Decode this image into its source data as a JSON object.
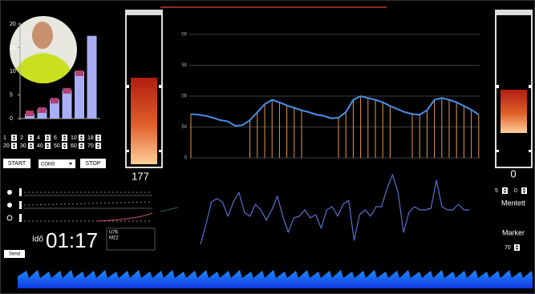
{
  "bar_chart": {
    "ylim": [
      0,
      20
    ],
    "yticks": [
      0,
      5,
      10,
      15,
      20
    ],
    "values": [
      1,
      2,
      4,
      6,
      10,
      17.5
    ],
    "markers": [
      1,
      1.7,
      3.7,
      5.8,
      9.5
    ]
  },
  "spinners_row1": [
    "1",
    "2",
    "4",
    "6",
    "10",
    "18"
  ],
  "spinners_row2": [
    "20",
    "30",
    "40",
    "50",
    "60",
    "70"
  ],
  "buttons": {
    "start": "START",
    "port": "COM3",
    "stop": "STOP",
    "send": "Send"
  },
  "left_gauge": {
    "value": 177
  },
  "right_gauge": {
    "value": 0
  },
  "main_chart": {
    "ylim": [
      0,
      200
    ],
    "yticks": [
      0,
      50,
      {
        "value": 100,
        "label": "00"
      },
      {
        "value": 150,
        "label": "50"
      },
      {
        "value": 200,
        "label": "00"
      }
    ],
    "line": [
      71,
      70,
      68,
      65,
      61,
      59,
      52,
      53,
      61,
      74,
      87,
      94,
      90,
      85,
      81,
      77,
      74,
      70,
      68,
      64,
      65,
      74,
      94,
      100,
      97,
      94,
      90,
      84,
      79,
      74,
      71,
      70,
      77,
      94,
      97,
      94,
      90,
      84,
      78,
      70
    ],
    "stems": [
      71,
      null,
      null,
      null,
      null,
      null,
      null,
      null,
      61,
      74,
      87,
      94,
      90,
      85,
      81,
      77,
      null,
      null,
      null,
      null,
      65,
      74,
      94,
      100,
      97,
      94,
      90,
      84,
      null,
      null,
      71,
      70,
      77,
      94,
      97,
      94,
      90,
      84,
      78,
      70
    ],
    "line_color": "#4a8fe8",
    "stem_color": "#e09a4a"
  },
  "signal": {
    "values": [
      5,
      30,
      58,
      62,
      58,
      40,
      58,
      70,
      45,
      40,
      55,
      48,
      35,
      48,
      65,
      40,
      20,
      38,
      40,
      48,
      38,
      42,
      25,
      48,
      52,
      40,
      55,
      60,
      10,
      42,
      48,
      40,
      52,
      52,
      75,
      92,
      70,
      20,
      45,
      52,
      48,
      48,
      50,
      85,
      52,
      48,
      48,
      55,
      48,
      48
    ],
    "color": "#5a6fd0"
  },
  "timer": {
    "label": "Idő",
    "time": "01:17"
  },
  "log": [
    "U76",
    "M22"
  ],
  "right_panel": {
    "spinners": [
      "5",
      "0"
    ],
    "saved": "Mentett",
    "marker": "Marker",
    "marker_value": "70"
  }
}
